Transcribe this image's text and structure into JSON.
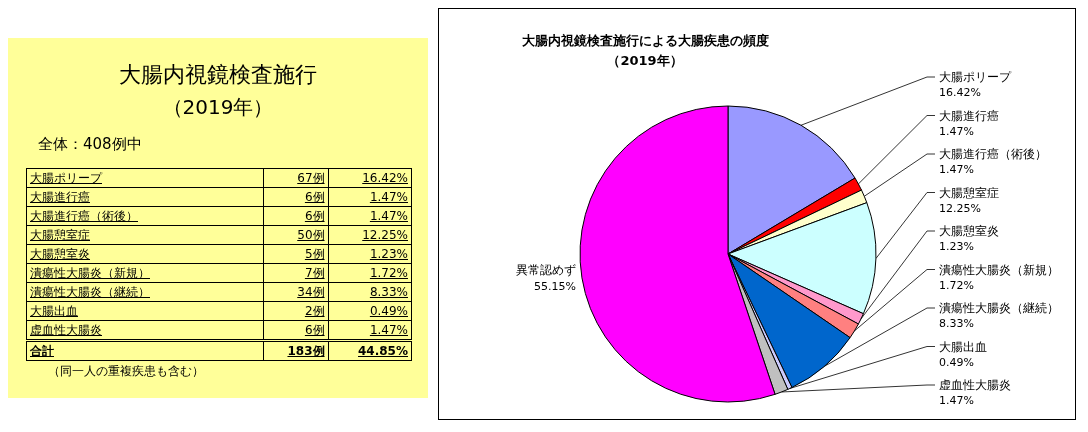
{
  "chart_data": [
    {
      "type": "other",
      "title": "大腸内視鏡検査施行",
      "subtitle": "（2019年）",
      "categories": [
        "大腸ポリープ",
        "大腸進行癌",
        "大腸進行癌（術後）",
        "大腸憩室症",
        "大腸憩室炎",
        "潰瘍性大腸炎（新規）",
        "潰瘍性大腸炎（継続）",
        "大腸出血",
        "虚血性大腸炎"
      ],
      "series": [
        {
          "values": [
            67,
            6,
            6,
            50,
            5,
            7,
            34,
            2,
            6
          ],
          "value_labels": [
            "67例",
            "6例",
            "6例",
            "50例",
            "5例",
            "7例",
            "34例",
            "2例",
            "6例"
          ]
        },
        {
          "values": [
            16.42,
            1.47,
            1.47,
            12.25,
            1.23,
            1.72,
            8.33,
            0.49,
            1.47
          ],
          "value_labels": [
            "16.42%",
            "1.47%",
            "1.47%",
            "12.25%",
            "1.23%",
            "1.72%",
            "8.33%",
            "0.49%",
            "1.47%"
          ]
        }
      ],
      "annotations": [
        "全体：408例中",
        "合計",
        "183例",
        "44.85%",
        "（同一人の重複疾患も含む）"
      ]
    },
    {
      "type": "pie",
      "title": "大腸内視鏡検査施行による大腸疾患の頻度",
      "subtitle": "（2019年）",
      "categories": [
        "大腸ポリープ",
        "大腸進行癌",
        "大腸進行癌（術後）",
        "大腸憩室症",
        "大腸憩室炎",
        "潰瘍性大腸炎（新規）",
        "潰瘍性大腸炎（継続）",
        "大腸出血",
        "虚血性大腸炎",
        "異常認めず"
      ],
      "values": [
        16.42,
        1.47,
        1.47,
        12.25,
        1.23,
        1.72,
        8.33,
        0.49,
        1.47,
        55.15
      ],
      "colors": [
        "#9999ff",
        "#ff0000",
        "#ffffcc",
        "#ccffff",
        "#ff99cc",
        "#ff8080",
        "#0066cc",
        "#ccccff",
        "#c0c0c0",
        "#ff00ff"
      ],
      "value_labels": [
        "16.42%",
        "1.47%",
        "1.47%",
        "12.25%",
        "1.23%",
        "1.72%",
        "8.33%",
        "0.49%",
        "1.47%",
        "55.15%"
      ]
    }
  ]
}
